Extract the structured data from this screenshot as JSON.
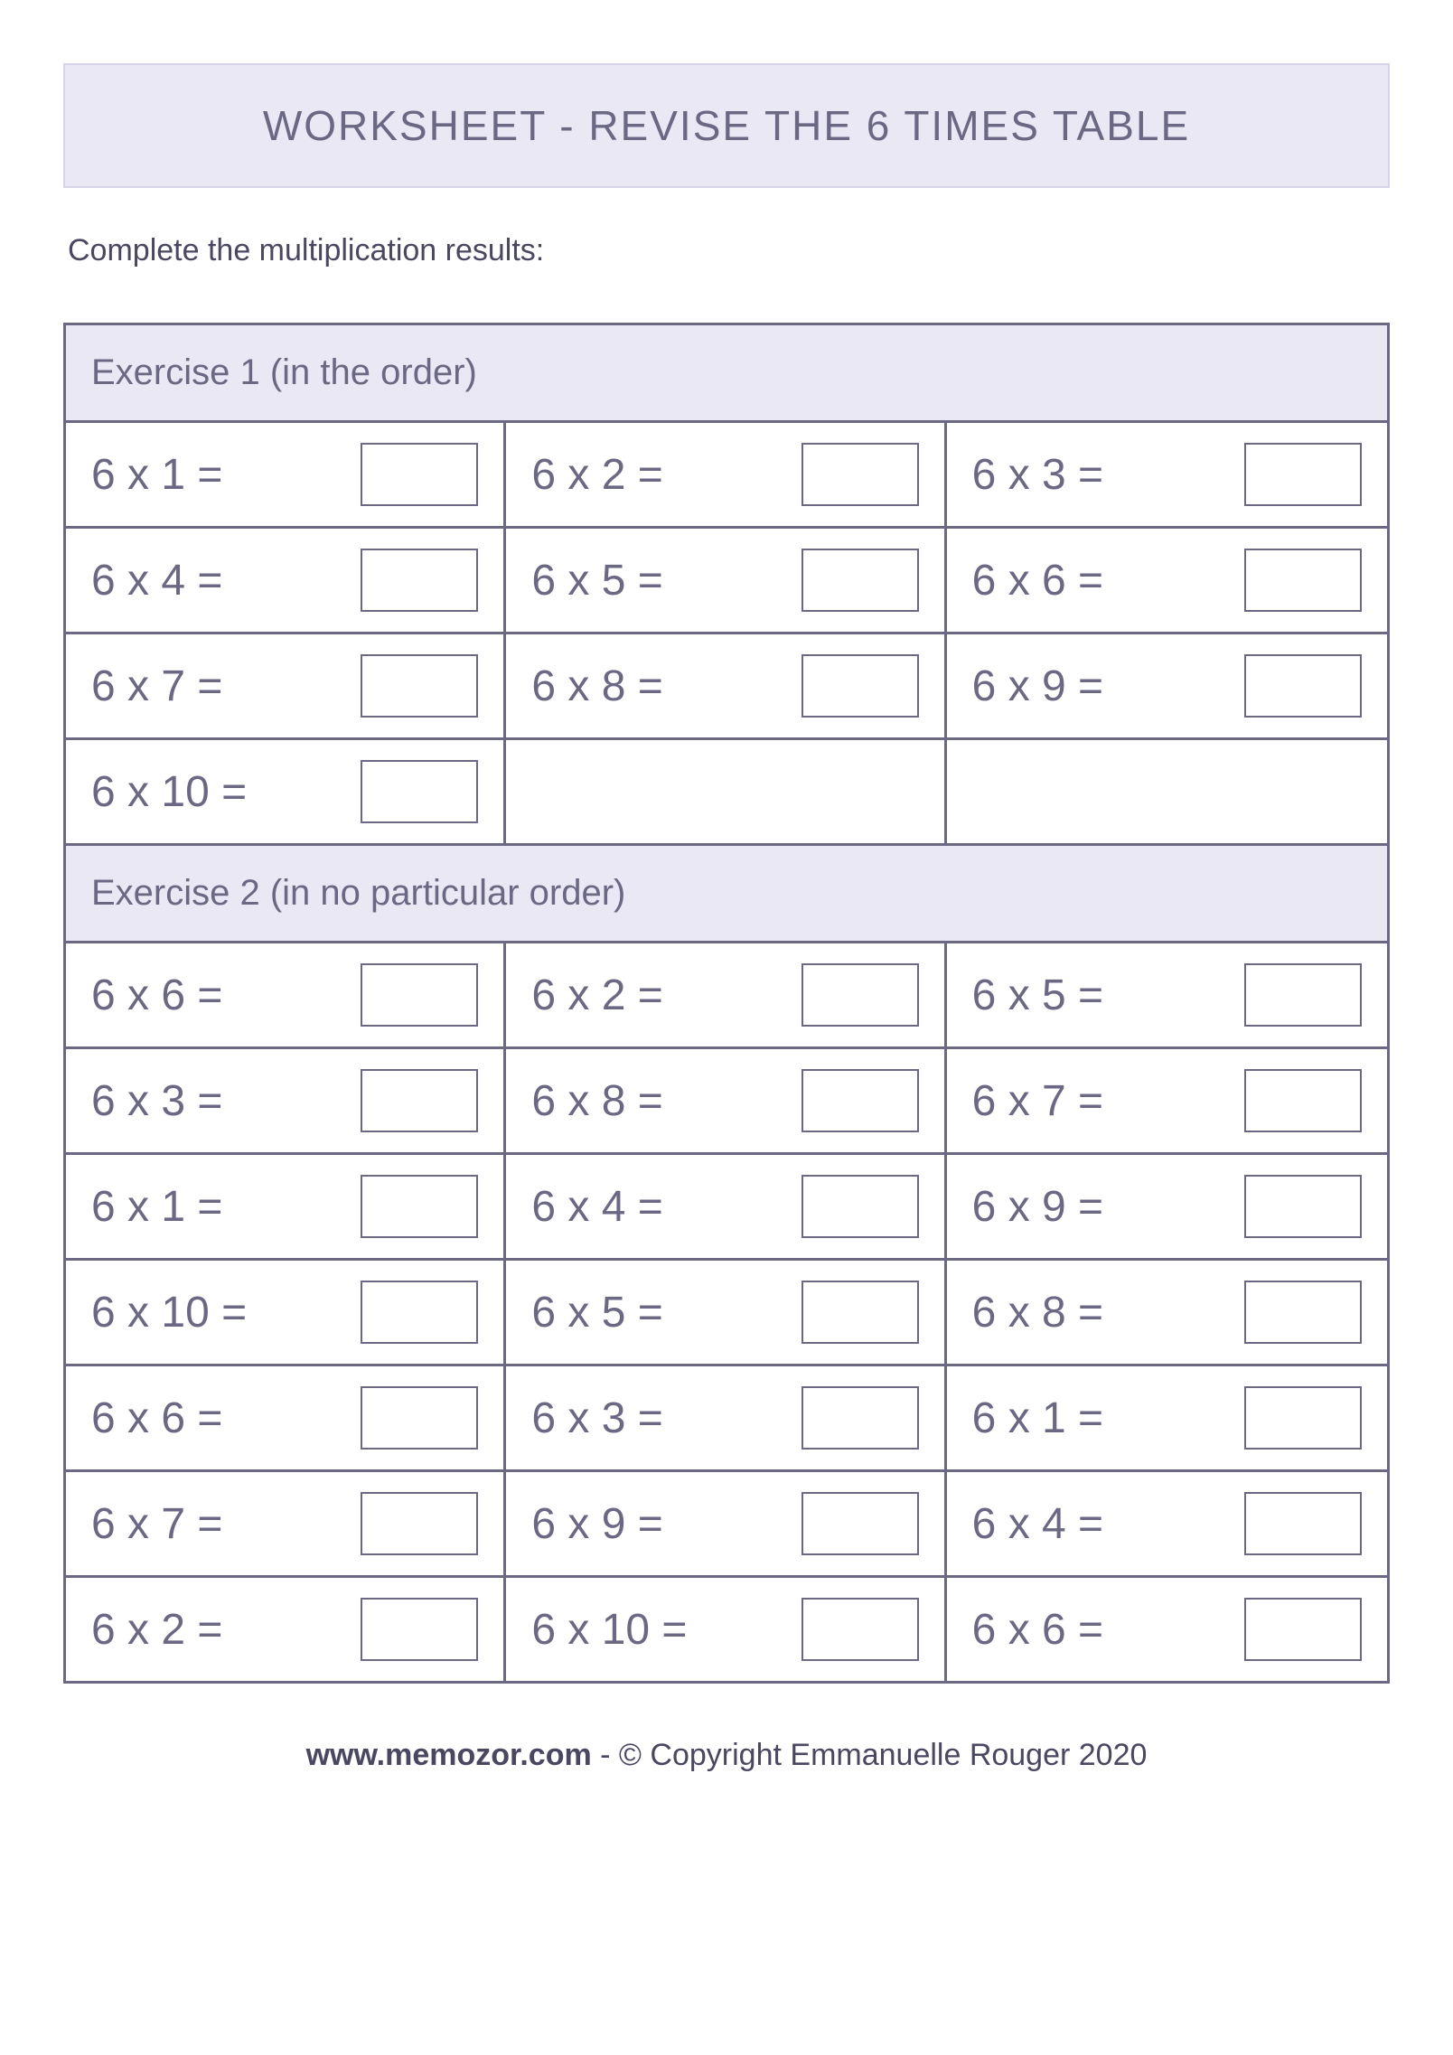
{
  "title": "WORKSHEET - REVISE THE 6 TIMES TABLE",
  "instruction": "Complete the multiplication results:",
  "colors": {
    "header_bg": "#eae8f4",
    "header_border": "#d8d4e8",
    "table_border": "#6b6884",
    "text_primary": "#6b6884",
    "text_instruction": "#4a4760",
    "background": "#ffffff"
  },
  "fonts": {
    "title_size": 46,
    "instruction_size": 34,
    "exercise_header_size": 40,
    "problem_size": 48,
    "footer_size": 34
  },
  "exercises": [
    {
      "header": "Exercise 1 (in the order)",
      "columns": 3,
      "rows": 4,
      "problems": [
        "6 x 1 =",
        "6 x 2 =",
        "6 x 3 =",
        "6 x 4 =",
        "6 x 5 =",
        "6 x 6 =",
        "6 x 7 =",
        "6 x 8 =",
        "6 x 9 =",
        "6 x 10 =",
        "",
        ""
      ]
    },
    {
      "header": "Exercise 2 (in no particular order)",
      "columns": 3,
      "rows": 7,
      "problems": [
        "6 x 6 =",
        "6 x 2 =",
        "6 x 5 =",
        "6 x 3 =",
        "6 x 8 =",
        "6 x 7 =",
        "6 x 1 =",
        "6 x 4 =",
        "6 x 9 =",
        "6 x 10 =",
        "6 x 5 =",
        "6 x 8 =",
        "6 x 6 =",
        "6 x 3 =",
        "6 x 1 =",
        "6 x 7 =",
        "6 x 9 =",
        "6 x 4 =",
        "6 x 2 =",
        "6 x 10 =",
        "6 x 6 ="
      ]
    }
  ],
  "footer": {
    "site": "www.memozor.com",
    "copyright": " - © Copyright Emmanuelle Rouger 2020"
  }
}
